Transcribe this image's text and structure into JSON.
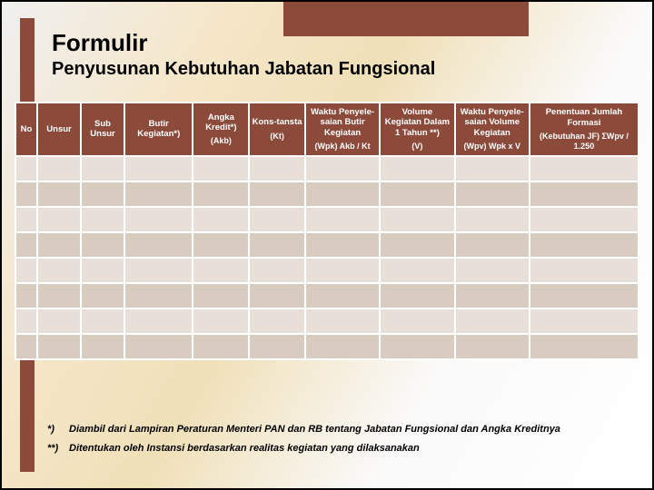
{
  "title": "Formulir",
  "subtitle": "Penyusunan Kebutuhan Jabatan Fungsional",
  "headers": {
    "no": "No",
    "unsur": "Unsur",
    "sub_unsur": "Sub Unsur",
    "butir": "Butir Kegiatan*)",
    "angka_top": "Angka Kredit*)",
    "angka_sub": "(Akb)",
    "kons_top": "Kons-tansta",
    "kons_sub": "(Kt)",
    "waktu1_top": "Waktu Penyele-saian Butir Kegiatan",
    "waktu1_sub": "(Wpk) Akb / Kt",
    "volume_top": "Volume Kegiatan Dalam 1 Tahun **)",
    "volume_sub": "(V)",
    "waktu2_top": "Waktu Penyele-saian Volume Kegiatan",
    "waktu2_sub": "(Wpv) Wpk x V",
    "penentuan_top": "Penentuan Jumlah Formasi",
    "penentuan_sub": "(Kebutuhan JF) ΣWpv / 1.250"
  },
  "footnotes": {
    "m1": "*)",
    "t1": "Diambil dari Lampiran Peraturan Menteri PAN dan RB tentang Jabatan Fungsional dan Angka Kreditnya",
    "m2": "**)",
    "t2": "Ditentukan oleh Instansi berdasarkan realitas kegiatan yang dilaksanakan"
  },
  "empty_rows": 8
}
